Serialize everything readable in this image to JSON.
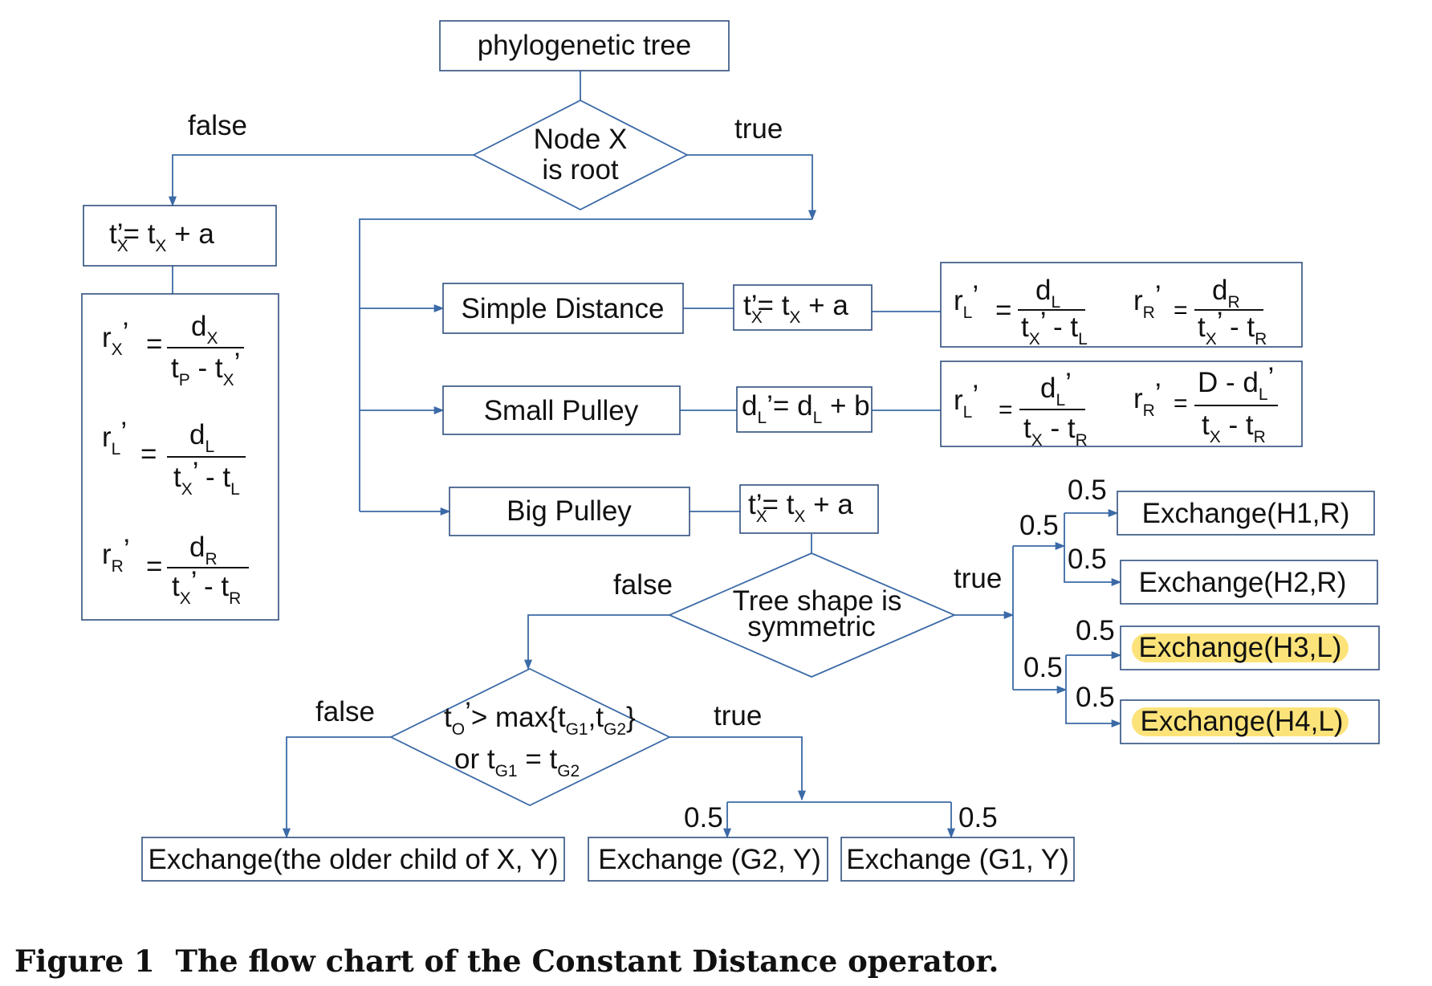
{
  "nodes": {
    "root": "phylogenetic tree",
    "is_root_line1": "Node X",
    "is_root_line2": "is root",
    "simple_distance": "Simple Distance",
    "small_pulley": "Small Pulley",
    "big_pulley": "Big Pulley",
    "symmetric_line1": "Tree shape is",
    "symmetric_line2": "symmetric",
    "exchange_h1": "Exchange(H1,R)",
    "exchange_h2": "Exchange(H2,R)",
    "exchange_h3": "Exchange(H3,L)",
    "exchange_h4": "Exchange(H4,L)",
    "exchange_older": "Exchange(the older child of X, Y)",
    "exchange_g2": "Exchange (G2, Y)",
    "exchange_g1": "Exchange (G1, Y)"
  },
  "edge_labels": {
    "root_false": "false",
    "root_true": "true",
    "sym_false": "false",
    "sym_true": "true",
    "cond_false": "false",
    "cond_true": "true",
    "p_upper": "0.5",
    "p_h1": "0.5",
    "p_h2": "0.5",
    "p_lower": "0.5",
    "p_h3": "0.5",
    "p_h4": "0.5",
    "p_g2": "0.5",
    "p_g1": "0.5"
  },
  "caption": "Figure 1  The flow chart of the Constant Distance operator.",
  "colors": {
    "edge": "#3b6aa6",
    "highlight": "#fbe37a"
  }
}
